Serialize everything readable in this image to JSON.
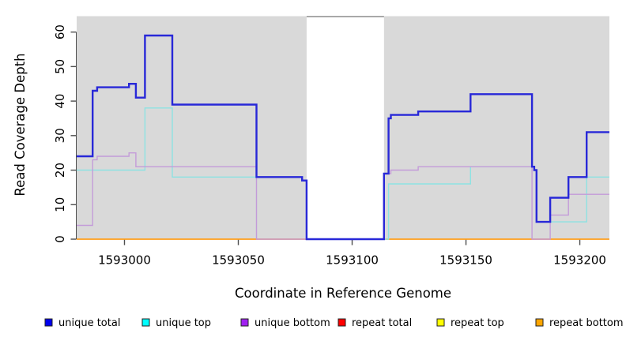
{
  "chart_data": {
    "type": "step-line",
    "title": "",
    "xlabel": "Coordinate in Reference Genome",
    "ylabel": "Read Coverage Depth",
    "xlim": [
      1592979,
      1593213
    ],
    "ylim": [
      0,
      64.6
    ],
    "x_ticks": [
      1593000,
      1593050,
      1593100,
      1593150,
      1593200
    ],
    "y_ticks": [
      0,
      10,
      20,
      30,
      40,
      50,
      60
    ],
    "grid": "off",
    "plot_bg_color": "#d9d9d9",
    "axis_color": "#4d4d4d",
    "gap_region": {
      "x_start": 1593080,
      "x_end": 1593114,
      "fill": "#ffffff",
      "top_border_color": "#9b9b9b"
    },
    "series": [
      {
        "name": "repeat total",
        "line_color": "#d40000",
        "line_width": 1,
        "layer": 1,
        "points": [
          [
            1592979,
            0
          ]
        ]
      },
      {
        "name": "repeat top",
        "line_color": "#ffff00",
        "line_width": 1,
        "layer": 1,
        "points": [
          [
            1592979,
            0
          ]
        ]
      },
      {
        "name": "repeat bottom",
        "line_color": "#ff9e1b",
        "line_width": 1.8,
        "layer": 1,
        "points": [
          [
            1592979,
            0
          ]
        ]
      },
      {
        "name": "unique top",
        "line_color": "#8de2e2",
        "line_width": 1.4,
        "layer": 2,
        "points": [
          [
            1592979,
            20
          ],
          [
            1593009,
            38
          ],
          [
            1593021,
            18
          ],
          [
            1593078,
            17
          ],
          [
            1593080,
            0
          ],
          [
            1593116,
            16
          ],
          [
            1593152,
            21
          ],
          [
            1593180,
            20
          ],
          [
            1593181,
            5
          ],
          [
            1593203,
            18
          ]
        ]
      },
      {
        "name": "unique bottom",
        "line_color": "#c39bd9",
        "line_width": 1.4,
        "layer": 2,
        "points": [
          [
            1592979,
            4
          ],
          [
            1592986,
            23
          ],
          [
            1592988,
            24
          ],
          [
            1593002,
            25
          ],
          [
            1593005,
            21
          ],
          [
            1593058,
            0
          ],
          [
            1593114,
            19
          ],
          [
            1593117,
            20
          ],
          [
            1593129,
            21
          ],
          [
            1593179,
            0
          ],
          [
            1593187,
            7
          ],
          [
            1593195,
            13
          ]
        ]
      },
      {
        "name": "unique total",
        "line_color": "#2828d8",
        "line_width": 2.4,
        "layer": 2,
        "points": [
          [
            1592979,
            24
          ],
          [
            1592986,
            43
          ],
          [
            1592988,
            44
          ],
          [
            1593002,
            45
          ],
          [
            1593005,
            41
          ],
          [
            1593009,
            59
          ],
          [
            1593021,
            39
          ],
          [
            1593058,
            18
          ],
          [
            1593078,
            17
          ],
          [
            1593080,
            0
          ],
          [
            1593114,
            19
          ],
          [
            1593116,
            35
          ],
          [
            1593117,
            36
          ],
          [
            1593129,
            37
          ],
          [
            1593152,
            42
          ],
          [
            1593179,
            21
          ],
          [
            1593180,
            20
          ],
          [
            1593181,
            5
          ],
          [
            1593187,
            12
          ],
          [
            1593195,
            18
          ],
          [
            1593203,
            31
          ]
        ]
      }
    ]
  },
  "legend": {
    "items": [
      {
        "label": "unique total",
        "fill": "#0000ee"
      },
      {
        "label": "unique top",
        "fill": "#00ffff"
      },
      {
        "label": "unique bottom",
        "fill": "#a020f0"
      },
      {
        "label": "repeat total",
        "fill": "#ff0000"
      },
      {
        "label": "repeat top",
        "fill": "#ffff00"
      },
      {
        "label": "repeat bottom",
        "fill": "#ffa500"
      }
    ],
    "swatch_border_color": "#222222"
  }
}
